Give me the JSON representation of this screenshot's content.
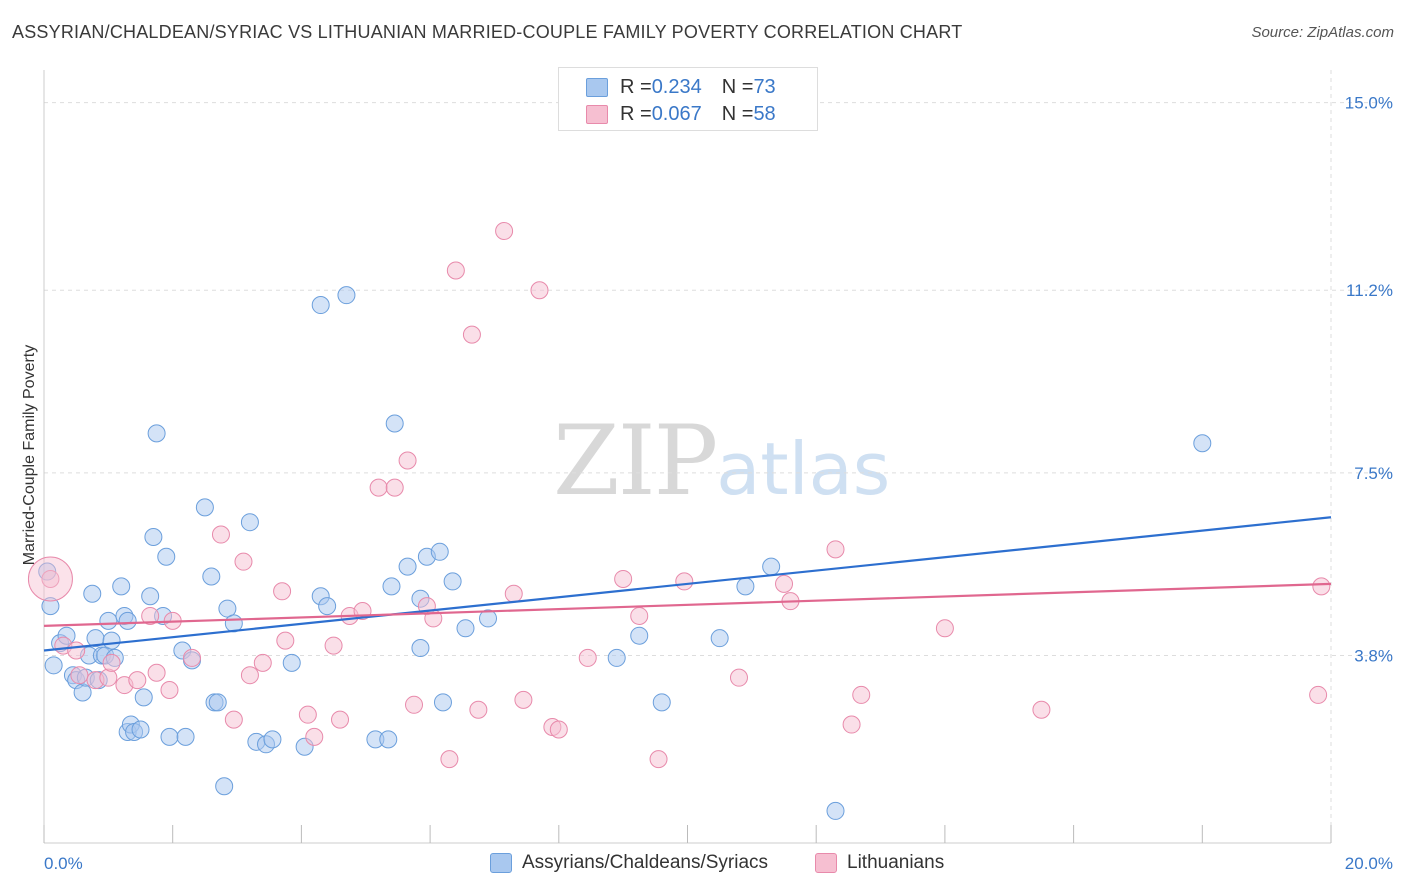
{
  "title": "ASSYRIAN/CHALDEAN/SYRIAC VS LITHUANIAN MARRIED-COUPLE FAMILY POVERTY CORRELATION CHART",
  "source": "Source: ZipAtlas.com",
  "watermark": {
    "zip": "ZIP",
    "atlas": "atlas"
  },
  "legend": {
    "rows": [
      {
        "r_label": "R = ",
        "r_value": "0.234",
        "n_label": "N = ",
        "n_value": "73"
      },
      {
        "r_label": "R = ",
        "r_value": "0.067",
        "n_label": "N = ",
        "n_value": "58"
      }
    ]
  },
  "colors": {
    "blue_fill": "#a9c8ef",
    "blue_stroke": "#6b9fdc",
    "blue_line": "#2d6fcf",
    "pink_fill": "#f6bfd1",
    "pink_stroke": "#e88aab",
    "pink_line": "#e0678f",
    "grid": "#dddddd",
    "tick_label": "#3a78c8"
  },
  "chart_data": {
    "type": "scatter",
    "title": "ASSYRIAN/CHALDEAN/SYRIAC VS LITHUANIAN MARRIED-COUPLE FAMILY POVERTY CORRELATION CHART",
    "xlabel": "",
    "ylabel": "Married-Couple Family Poverty",
    "xlim": [
      0,
      20
    ],
    "ylim": [
      0,
      15.5
    ],
    "x_tick_labels": [
      {
        "value": 0,
        "label": "0.0%"
      },
      {
        "value": 20,
        "label": "20.0%"
      }
    ],
    "y_tick_labels": [
      {
        "value": 3.8,
        "label": "3.8%"
      },
      {
        "value": 7.5,
        "label": "7.5%"
      },
      {
        "value": 11.2,
        "label": "11.2%"
      },
      {
        "value": 15.0,
        "label": "15.0%"
      }
    ],
    "x_minor_ticks": [
      0,
      2,
      4,
      6,
      8,
      10,
      12,
      14,
      16,
      18,
      20
    ],
    "grid": true,
    "series": [
      {
        "name": "Assyrians/Chaldeans/Syriacs",
        "color": "blue",
        "R": 0.234,
        "N": 73,
        "trend": {
          "x": [
            0,
            20
          ],
          "y": [
            3.9,
            6.6
          ]
        },
        "points": [
          [
            0.05,
            5.5
          ],
          [
            0.1,
            4.8
          ],
          [
            0.15,
            3.6
          ],
          [
            0.25,
            4.05
          ],
          [
            0.35,
            4.2
          ],
          [
            0.45,
            3.4
          ],
          [
            0.5,
            3.3
          ],
          [
            0.6,
            3.05
          ],
          [
            0.65,
            3.35
          ],
          [
            0.7,
            3.8
          ],
          [
            0.75,
            5.05
          ],
          [
            0.8,
            4.15
          ],
          [
            0.85,
            3.3
          ],
          [
            0.9,
            3.8
          ],
          [
            0.95,
            3.8
          ],
          [
            1.0,
            4.5
          ],
          [
            1.05,
            4.1
          ],
          [
            1.1,
            3.75
          ],
          [
            1.2,
            5.2
          ],
          [
            1.25,
            4.6
          ],
          [
            1.3,
            4.5
          ],
          [
            1.3,
            2.25
          ],
          [
            1.35,
            2.4
          ],
          [
            1.4,
            2.25
          ],
          [
            1.5,
            2.3
          ],
          [
            1.55,
            2.95
          ],
          [
            1.65,
            5.0
          ],
          [
            1.7,
            6.2
          ],
          [
            1.75,
            8.3
          ],
          [
            1.85,
            4.6
          ],
          [
            1.9,
            5.8
          ],
          [
            1.95,
            2.15
          ],
          [
            2.15,
            3.9
          ],
          [
            2.2,
            2.15
          ],
          [
            2.3,
            3.7
          ],
          [
            2.5,
            6.8
          ],
          [
            2.6,
            5.4
          ],
          [
            2.65,
            2.85
          ],
          [
            2.7,
            2.85
          ],
          [
            2.8,
            1.15
          ],
          [
            2.85,
            4.75
          ],
          [
            2.95,
            4.45
          ],
          [
            3.2,
            6.5
          ],
          [
            3.3,
            2.05
          ],
          [
            3.45,
            2.0
          ],
          [
            3.55,
            2.1
          ],
          [
            3.85,
            3.65
          ],
          [
            4.05,
            1.95
          ],
          [
            4.3,
            10.9
          ],
          [
            4.3,
            5.0
          ],
          [
            4.4,
            4.8
          ],
          [
            4.7,
            11.1
          ],
          [
            5.15,
            2.1
          ],
          [
            5.35,
            2.1
          ],
          [
            5.4,
            5.2
          ],
          [
            5.45,
            8.5
          ],
          [
            5.65,
            5.6
          ],
          [
            5.85,
            3.95
          ],
          [
            5.85,
            4.95
          ],
          [
            5.95,
            5.8
          ],
          [
            6.15,
            5.9
          ],
          [
            6.2,
            2.85
          ],
          [
            6.35,
            5.3
          ],
          [
            6.55,
            4.35
          ],
          [
            6.9,
            4.55
          ],
          [
            8.9,
            3.75
          ],
          [
            9.25,
            4.2
          ],
          [
            9.6,
            2.85
          ],
          [
            10.5,
            4.15
          ],
          [
            10.9,
            5.2
          ],
          [
            11.3,
            5.6
          ],
          [
            12.3,
            0.65
          ],
          [
            18.0,
            8.1
          ]
        ]
      },
      {
        "name": "Lithuanians",
        "color": "pink",
        "R": 0.067,
        "N": 58,
        "trend": {
          "x": [
            0,
            20
          ],
          "y": [
            4.4,
            5.25
          ]
        },
        "points": [
          [
            0.1,
            5.35
          ],
          [
            0.3,
            4.0
          ],
          [
            0.5,
            3.9
          ],
          [
            0.55,
            3.4
          ],
          [
            0.8,
            3.3
          ],
          [
            1.0,
            3.35
          ],
          [
            1.05,
            3.65
          ],
          [
            1.25,
            3.2
          ],
          [
            1.45,
            3.3
          ],
          [
            1.65,
            4.6
          ],
          [
            1.75,
            3.45
          ],
          [
            1.95,
            3.1
          ],
          [
            2.0,
            4.5
          ],
          [
            2.3,
            3.75
          ],
          [
            2.75,
            6.25
          ],
          [
            2.95,
            2.5
          ],
          [
            3.1,
            5.7
          ],
          [
            3.2,
            3.4
          ],
          [
            3.4,
            3.65
          ],
          [
            3.7,
            5.1
          ],
          [
            3.75,
            4.1
          ],
          [
            4.1,
            2.6
          ],
          [
            4.2,
            2.15
          ],
          [
            4.5,
            4.0
          ],
          [
            4.6,
            2.5
          ],
          [
            4.75,
            4.6
          ],
          [
            4.95,
            4.7
          ],
          [
            5.2,
            7.2
          ],
          [
            5.45,
            7.2
          ],
          [
            5.65,
            7.75
          ],
          [
            5.75,
            2.8
          ],
          [
            5.95,
            4.8
          ],
          [
            6.05,
            4.55
          ],
          [
            6.3,
            1.7
          ],
          [
            6.4,
            11.6
          ],
          [
            6.65,
            10.3
          ],
          [
            6.75,
            2.7
          ],
          [
            7.15,
            12.4
          ],
          [
            7.3,
            5.05
          ],
          [
            7.45,
            2.9
          ],
          [
            7.7,
            11.2
          ],
          [
            7.9,
            2.35
          ],
          [
            8.0,
            2.3
          ],
          [
            8.45,
            3.75
          ],
          [
            9.0,
            5.35
          ],
          [
            9.25,
            4.6
          ],
          [
            9.55,
            1.7
          ],
          [
            9.95,
            5.3
          ],
          [
            10.8,
            3.35
          ],
          [
            11.5,
            5.25
          ],
          [
            11.6,
            4.9
          ],
          [
            12.3,
            5.95
          ],
          [
            12.55,
            2.4
          ],
          [
            12.7,
            3.0
          ],
          [
            14.0,
            4.35
          ],
          [
            15.5,
            2.7
          ],
          [
            19.8,
            3.0
          ],
          [
            19.85,
            5.2
          ]
        ]
      }
    ]
  },
  "bottom_legend": [
    {
      "label": "Assyrians/Chaldeans/Syriacs"
    },
    {
      "label": "Lithuanians"
    }
  ]
}
